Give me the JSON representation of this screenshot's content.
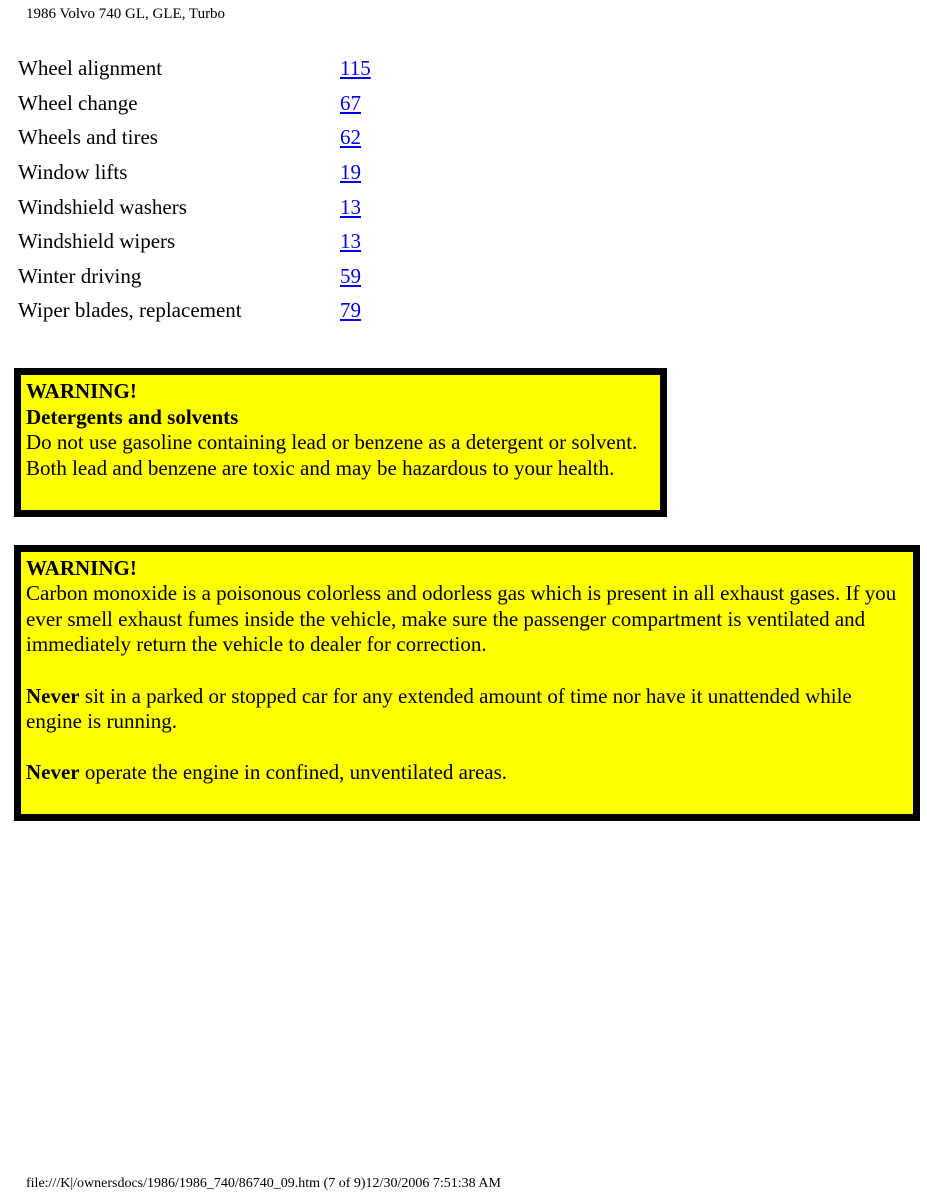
{
  "header": "1986 Volvo 740 GL, GLE, Turbo",
  "index": [
    {
      "label": "Wheel alignment",
      "page": "115 "
    },
    {
      "label": "Wheel change",
      "page": "67 "
    },
    {
      "label": "Wheels and tires",
      "page": "62 "
    },
    {
      "label": "Window lifts",
      "page": "19 "
    },
    {
      "label": "Windshield washers",
      "page": "13 "
    },
    {
      "label": "Windshield wipers",
      "page": "13 "
    },
    {
      "label": "Winter driving",
      "page": "59 "
    },
    {
      "label": "Wiper blades, replacement",
      "page": "79"
    }
  ],
  "warning1": {
    "title": "WARNING!",
    "subtitle": "Detergents and solvents",
    "body": "Do not use gasoline containing lead or benzene as a detergent or solvent. Both lead and benzene are toxic and may be hazardous to your health."
  },
  "warning2": {
    "title": "WARNING!",
    "body1": "Carbon monoxide is a poisonous colorless and odorless gas which is present in all exhaust gases. If you ever smell exhaust fumes inside the vehicle, make sure the passenger compartment is ventilated and immediately return the vehicle to dealer for correction.",
    "never": "Never",
    "body2": " sit in a parked or stopped car for any extended amount of time nor have it unattended while engine is running.",
    "body3": " operate the engine in confined, unventilated areas."
  },
  "footer": "file:///K|/ownersdocs/1986/1986_740/86740_09.htm (7 of 9)12/30/2006 7:51:38 AM",
  "colors": {
    "warning_bg": "#ffff00",
    "warning_border": "#000000",
    "link": "#0000ee",
    "text": "#000000",
    "page_bg": "#ffffff"
  }
}
